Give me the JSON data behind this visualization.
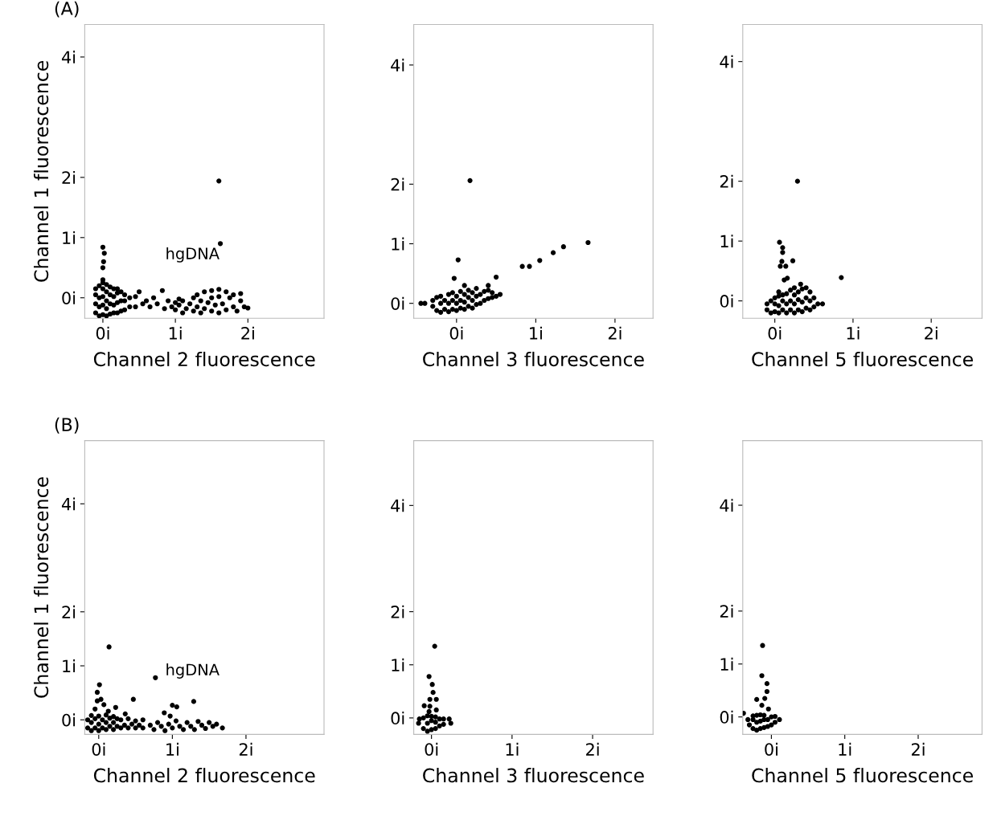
{
  "chart_data": [
    {
      "type": "scatter",
      "ylabel": "Channel 1 fluorescence",
      "xlabel": "Channel 2 fluorescence",
      "marker": "circle",
      "annotations": [
        "(A)",
        "hgDNA"
      ],
      "xlim": [
        -0.25,
        3.05
      ],
      "ylim": [
        -0.34,
        4.54
      ],
      "xticks": [
        {
          "value": 0,
          "label": "0i"
        },
        {
          "value": 1,
          "label": "1i"
        },
        {
          "value": 2,
          "label": "2i"
        }
      ],
      "yticks": [
        {
          "value": 0,
          "label": "0i"
        },
        {
          "value": 1,
          "label": "1i"
        },
        {
          "value": 2,
          "label": "2i"
        },
        {
          "value": 4,
          "label": "4i"
        }
      ],
      "series": [
        {
          "color": "#000000",
          "x": [
            -0.1,
            -0.1,
            -0.1,
            -0.1,
            -0.05,
            -0.05,
            -0.05,
            -0.05,
            0,
            0,
            0,
            0,
            0,
            0.05,
            0.05,
            0.05,
            0.05,
            0.05,
            0.1,
            0.1,
            0.1,
            0.1,
            0.15,
            0.15,
            0.15,
            0.15,
            0.2,
            0.2,
            0.2,
            0.2,
            0.25,
            0.25,
            0.25,
            0.3,
            0.3,
            0.3,
            0.37,
            0.37,
            0.45,
            0.45,
            0.5,
            0.55,
            0.6,
            0.65,
            0.7,
            0.75,
            0.82,
            0.85,
            0.9,
            0.95,
            1.0,
            1.05,
            1.0,
            1.05,
            1.1,
            1.1,
            1.15,
            1.2,
            1.25,
            1.25,
            1.3,
            1.3,
            1.35,
            1.35,
            1.4,
            1.4,
            1.45,
            1.5,
            1.5,
            1.5,
            1.55,
            1.6,
            1.6,
            1.6,
            1.65,
            1.7,
            1.7,
            1.75,
            1.8,
            1.8,
            1.85,
            1.9,
            1.9,
            1.95,
            2.0,
            0.0,
            0.02,
            0.01,
            0.0,
            0.0,
            1.6,
            1.62
          ],
          "values": [
            -0.25,
            -0.1,
            0.05,
            0.15,
            -0.3,
            -0.15,
            0,
            0.2,
            -0.28,
            -0.12,
            0.02,
            0.15,
            0.25,
            -0.3,
            -0.18,
            -0.05,
            0.1,
            0.22,
            -0.27,
            -0.1,
            0.05,
            0.18,
            -0.25,
            -0.12,
            0.02,
            0.15,
            -0.25,
            -0.08,
            0.08,
            0.15,
            -0.22,
            -0.05,
            0.1,
            -0.2,
            -0.05,
            0.05,
            -0.15,
            0.0,
            -0.15,
            0.02,
            0.1,
            -0.1,
            -0.05,
            -0.15,
            0.0,
            -0.1,
            0.12,
            -0.18,
            -0.05,
            -0.15,
            -0.08,
            -0.02,
            -0.2,
            -0.12,
            -0.25,
            -0.05,
            -0.18,
            -0.1,
            -0.22,
            0.0,
            -0.15,
            0.05,
            -0.25,
            -0.05,
            0.1,
            -0.18,
            -0.08,
            0.12,
            -0.22,
            0.0,
            -0.12,
            0.14,
            -0.25,
            0.02,
            -0.1,
            0.1,
            -0.2,
            0.0,
            -0.15,
            0.05,
            -0.22,
            -0.05,
            0.07,
            -0.15,
            -0.17,
            0.84,
            0.74,
            0.6,
            0.5,
            0.3,
            1.94,
            0.9
          ]
        }
      ]
    },
    {
      "type": "scatter",
      "xlabel": "Channel 3 fluorescence",
      "marker": "circle",
      "xlim": [
        -0.54,
        2.48
      ],
      "ylim": [
        -0.25,
        4.68
      ],
      "xticks": [
        {
          "value": 0,
          "label": "0i"
        },
        {
          "value": 1,
          "label": "1i"
        },
        {
          "value": 2,
          "label": "2i"
        }
      ],
      "yticks": [
        {
          "value": 0,
          "label": "0i"
        },
        {
          "value": 1,
          "label": "1i"
        },
        {
          "value": 2,
          "label": "2i"
        },
        {
          "value": 4,
          "label": "4i"
        }
      ],
      "series": [
        {
          "color": "#000000",
          "x": [
            -0.45,
            -0.4,
            -0.3,
            -0.3,
            -0.25,
            -0.25,
            -0.2,
            -0.2,
            -0.2,
            -0.15,
            -0.15,
            -0.1,
            -0.1,
            -0.1,
            -0.05,
            -0.05,
            -0.05,
            0,
            0,
            0,
            0.05,
            0.05,
            0.05,
            0.1,
            0.1,
            0.1,
            0.15,
            0.15,
            0.15,
            0.2,
            0.2,
            0.2,
            0.25,
            0.25,
            0.25,
            0.3,
            0.3,
            0.35,
            0.35,
            0.4,
            0.4,
            0.45,
            0.45,
            0.5,
            0.55,
            0.17,
            0.02,
            -0.03,
            0.1,
            0.4,
            0.5,
            0.83,
            0.92,
            1.05,
            1.22,
            1.35,
            1.66
          ],
          "values": [
            0.0,
            0.0,
            -0.05,
            0.05,
            -0.12,
            0.1,
            -0.15,
            0.0,
            0.12,
            -0.1,
            0.05,
            -0.14,
            0.0,
            0.15,
            -0.1,
            0.05,
            0.18,
            -0.12,
            0.0,
            0.12,
            -0.08,
            0.05,
            0.2,
            -0.1,
            0.02,
            0.15,
            -0.05,
            0.1,
            0.22,
            -0.08,
            0.05,
            0.18,
            -0.02,
            0.12,
            0.25,
            0.0,
            0.15,
            0.05,
            0.2,
            0.08,
            0.22,
            0.1,
            0.18,
            0.12,
            0.15,
            2.06,
            0.73,
            0.42,
            0.3,
            0.3,
            0.44,
            0.62,
            0.62,
            0.72,
            0.85,
            0.95,
            1.02
          ]
        }
      ]
    },
    {
      "type": "scatter",
      "xlabel": "Channel 5 fluorescence",
      "marker": "circle",
      "xlim": [
        -0.41,
        2.65
      ],
      "ylim": [
        -0.29,
        4.62
      ],
      "xticks": [
        {
          "value": 0,
          "label": "0i"
        },
        {
          "value": 1,
          "label": "1i"
        },
        {
          "value": 2,
          "label": "2i"
        }
      ],
      "yticks": [
        {
          "value": 0,
          "label": "0i"
        },
        {
          "value": 1,
          "label": "1i"
        },
        {
          "value": 2,
          "label": "2i"
        },
        {
          "value": 4,
          "label": "4i"
        }
      ],
      "series": [
        {
          "color": "#000000",
          "x": [
            -0.1,
            -0.1,
            -0.05,
            -0.05,
            0,
            0,
            0,
            0.05,
            0.05,
            0.05,
            0.1,
            0.1,
            0.1,
            0.15,
            0.15,
            0.15,
            0.2,
            0.2,
            0.2,
            0.25,
            0.25,
            0.25,
            0.25,
            0.3,
            0.3,
            0.3,
            0.33,
            0.35,
            0.35,
            0.35,
            0.4,
            0.4,
            0.4,
            0.45,
            0.45,
            0.45,
            0.5,
            0.5,
            0.55,
            0.61,
            0.29,
            0.06,
            0.1,
            0.1,
            0.09,
            0.07,
            0.14,
            0.23,
            0.85,
            0.16,
            0.12,
            0.05
          ],
          "values": [
            -0.15,
            -0.05,
            -0.2,
            0.0,
            -0.18,
            -0.05,
            0.05,
            -0.2,
            -0.08,
            0.08,
            -0.15,
            0.0,
            0.1,
            -0.2,
            -0.05,
            0.12,
            -0.15,
            0.0,
            0.18,
            -0.2,
            -0.05,
            0.1,
            0.22,
            -0.15,
            0.02,
            0.15,
            0.28,
            -0.18,
            -0.02,
            0.2,
            -0.12,
            0.05,
            0.22,
            -0.15,
            0.0,
            0.15,
            -0.1,
            0.05,
            -0.05,
            -0.05,
            2.0,
            0.98,
            0.89,
            0.81,
            0.66,
            0.58,
            0.58,
            0.67,
            0.39,
            0.38,
            0.35,
            0.15
          ]
        }
      ]
    },
    {
      "type": "scatter",
      "ylabel": "Channel 1 fluorescence",
      "xlabel": "Channel 2 fluorescence",
      "marker": "circle",
      "annotations": [
        "(B)",
        "hgDNA"
      ],
      "xlim": [
        -0.19,
        3.06
      ],
      "ylim": [
        -0.27,
        5.17
      ],
      "xticks": [
        {
          "value": 0,
          "label": "0i"
        },
        {
          "value": 1,
          "label": "1i"
        },
        {
          "value": 2,
          "label": "2i"
        }
      ],
      "yticks": [
        {
          "value": 0,
          "label": "0i"
        },
        {
          "value": 1,
          "label": "1i"
        },
        {
          "value": 2,
          "label": "2i"
        },
        {
          "value": 4,
          "label": "4i"
        }
      ],
      "series": [
        {
          "color": "#000000",
          "x": [
            -0.15,
            -0.15,
            -0.1,
            -0.1,
            -0.1,
            -0.05,
            -0.05,
            0,
            0,
            0,
            0.05,
            0.05,
            0.1,
            0.1,
            0.1,
            0.15,
            0.15,
            0.2,
            0.2,
            0.2,
            0.25,
            0.25,
            0.3,
            0.3,
            0.35,
            0.4,
            0.4,
            0.45,
            0.5,
            0.5,
            0.55,
            0.6,
            0.6,
            0.7,
            0.75,
            0.8,
            0.85,
            0.9,
            0.95,
            1.0,
            1.05,
            1.1,
            1.15,
            1.2,
            1.25,
            1.3,
            1.35,
            1.4,
            1.45,
            1.5,
            1.55,
            1.6,
            1.68,
            0.14,
            0.77,
            0.01,
            -0.02,
            -0.02,
            0.03,
            0.07,
            0.23,
            -0.05,
            0.13,
            0.47,
            1.0,
            1.06,
            1.29,
            0.89,
            0.97,
            0.36
          ],
          "values": [
            -0.15,
            0.0,
            -0.2,
            -0.05,
            0.08,
            -0.15,
            0.02,
            -0.2,
            -0.08,
            0.07,
            -0.15,
            0.0,
            -0.18,
            -0.05,
            0.09,
            -0.12,
            0.03,
            -0.18,
            -0.05,
            0.06,
            -0.12,
            0.02,
            -0.15,
            0.0,
            -0.1,
            -0.15,
            0.02,
            -0.08,
            -0.15,
            -0.02,
            -0.1,
            -0.15,
            0.0,
            -0.1,
            -0.18,
            -0.05,
            -0.12,
            -0.2,
            -0.08,
            -0.15,
            -0.02,
            -0.12,
            -0.18,
            -0.05,
            -0.12,
            -0.18,
            -0.03,
            -0.1,
            -0.16,
            -0.05,
            -0.12,
            -0.08,
            -0.15,
            1.35,
            0.78,
            0.65,
            0.51,
            0.35,
            0.38,
            0.28,
            0.23,
            0.2,
            0.16,
            0.38,
            0.27,
            0.24,
            0.34,
            0.13,
            0.07,
            0.11
          ]
        }
      ]
    },
    {
      "type": "scatter",
      "xlabel": "Channel 3 fluorescence",
      "marker": "circle",
      "xlim": [
        -0.22,
        2.75
      ],
      "ylim": [
        -0.31,
        5.22
      ],
      "xticks": [
        {
          "value": 0,
          "label": "0i"
        },
        {
          "value": 1,
          "label": "1i"
        },
        {
          "value": 2,
          "label": "2i"
        }
      ],
      "yticks": [
        {
          "value": 0,
          "label": "0i"
        },
        {
          "value": 1,
          "label": "1i"
        },
        {
          "value": 2,
          "label": "2i"
        },
        {
          "value": 4,
          "label": "4i"
        }
      ],
      "series": [
        {
          "color": "#000000",
          "x": [
            -0.16,
            -0.15,
            -0.1,
            -0.1,
            -0.05,
            -0.05,
            -0.05,
            0,
            0,
            0,
            0.05,
            0.05,
            0.05,
            0.1,
            0.1,
            0.15,
            0.15,
            0.22,
            0.24,
            0.04,
            -0.03,
            0.01,
            0.02,
            -0.02,
            0.06,
            -0.09,
            -0.02,
            -0.03,
            0.06
          ],
          "values": [
            -0.1,
            -0.02,
            -0.2,
            0.0,
            -0.25,
            -0.1,
            0.04,
            -0.22,
            -0.05,
            0.03,
            -0.2,
            -0.08,
            0.02,
            -0.15,
            -0.02,
            -0.12,
            -0.02,
            -0.02,
            -0.1,
            1.35,
            0.78,
            0.63,
            0.48,
            0.35,
            0.35,
            0.23,
            0.22,
            0.12,
            0.15
          ]
        }
      ]
    },
    {
      "type": "scatter",
      "xlabel": "Channel 5 fluorescence",
      "marker": "circle",
      "xlim": [
        -0.39,
        2.87
      ],
      "ylim": [
        -0.33,
        5.22
      ],
      "xticks": [
        {
          "value": 0,
          "label": "0i"
        },
        {
          "value": 1,
          "label": "1i"
        },
        {
          "value": 2,
          "label": "2i"
        }
      ],
      "yticks": [
        {
          "value": 0,
          "label": "0i"
        },
        {
          "value": 1,
          "label": "1i"
        },
        {
          "value": 2,
          "label": "2i"
        },
        {
          "value": 4,
          "label": "4i"
        }
      ],
      "series": [
        {
          "color": "#000000",
          "x": [
            -0.32,
            -0.3,
            -0.25,
            -0.25,
            -0.25,
            -0.2,
            -0.2,
            -0.2,
            -0.15,
            -0.15,
            -0.15,
            -0.1,
            -0.1,
            -0.1,
            -0.05,
            -0.05,
            0,
            0,
            0.05,
            0.11,
            -0.12,
            -0.13,
            -0.06,
            -0.06,
            -0.2,
            -0.09,
            -0.13,
            -0.04,
            -0.38,
            0.05
          ],
          "values": [
            -0.05,
            -0.15,
            -0.22,
            -0.05,
            0.02,
            -0.25,
            -0.1,
            0.03,
            -0.22,
            -0.08,
            0.04,
            -0.2,
            -0.05,
            0.03,
            -0.18,
            -0.05,
            -0.15,
            0.0,
            -0.1,
            -0.05,
            1.35,
            0.78,
            0.63,
            0.48,
            0.33,
            0.35,
            0.22,
            0.15,
            0.07,
            0.01
          ]
        }
      ]
    }
  ]
}
